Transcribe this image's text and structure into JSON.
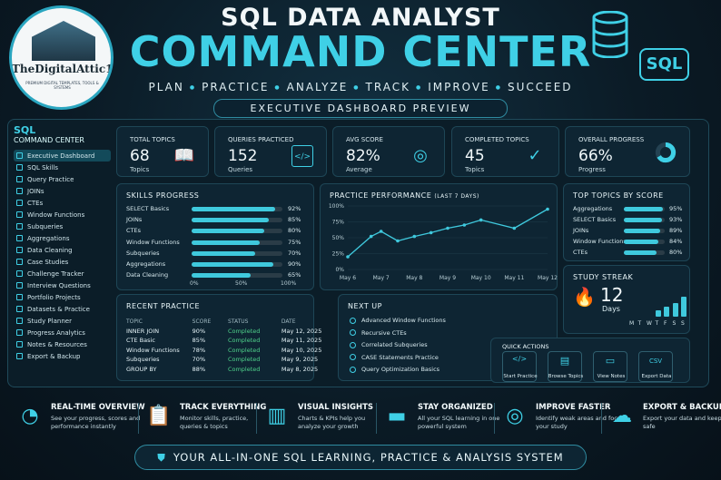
{
  "header": {
    "title1": "SQL DATA ANALYST",
    "title2": "COMMAND CENTER",
    "tagline": [
      "PLAN",
      "PRACTICE",
      "ANALYZE",
      "TRACK",
      "IMPROVE",
      "SUCCEED"
    ],
    "subtitle": "EXECUTIVE DASHBOARD PREVIEW",
    "badge": "SQL"
  },
  "logo": {
    "brand": "TheDigitalAttic1",
    "tagline": "PREMIUM DIGITAL TEMPLATES, TOOLS & SYSTEMS"
  },
  "sidebar": {
    "title": "SQL",
    "subtitle": "COMMAND CENTER",
    "items": [
      {
        "label": "Executive Dashboard",
        "icon": "dashboard-icon"
      },
      {
        "label": "SQL Skills",
        "icon": "skills-icon"
      },
      {
        "label": "Query Practice",
        "icon": "query-icon"
      },
      {
        "label": "JOINs",
        "icon": "joins-icon"
      },
      {
        "label": "CTEs",
        "icon": "cte-icon"
      },
      {
        "label": "Window Functions",
        "icon": "window-icon"
      },
      {
        "label": "Subqueries",
        "icon": "subquery-icon"
      },
      {
        "label": "Aggregations",
        "icon": "aggregation-icon"
      },
      {
        "label": "Data Cleaning",
        "icon": "cleaning-icon"
      },
      {
        "label": "Case Studies",
        "icon": "case-icon"
      },
      {
        "label": "Challenge Tracker",
        "icon": "challenge-icon"
      },
      {
        "label": "Interview Questions",
        "icon": "interview-icon"
      },
      {
        "label": "Portfolio Projects",
        "icon": "portfolio-icon"
      },
      {
        "label": "Datasets & Practice",
        "icon": "dataset-icon"
      },
      {
        "label": "Study Planner",
        "icon": "planner-icon"
      },
      {
        "label": "Progress Analytics",
        "icon": "analytics-icon"
      },
      {
        "label": "Notes & Resources",
        "icon": "notes-icon"
      },
      {
        "label": "Export & Backup",
        "icon": "export-icon"
      }
    ]
  },
  "kpis": [
    {
      "label": "TOTAL TOPICS",
      "value": "68",
      "unit": "Topics",
      "icon": "book-icon"
    },
    {
      "label": "QUERIES PRACTICED",
      "value": "152",
      "unit": "Queries",
      "icon": "code-icon"
    },
    {
      "label": "AVG SCORE",
      "value": "82%",
      "unit": "Average",
      "icon": "target-icon"
    },
    {
      "label": "COMPLETED TOPICS",
      "value": "45",
      "unit": "Topics",
      "icon": "check-circle-icon"
    },
    {
      "label": "OVERALL PROGRESS",
      "value": "66%",
      "unit": "Progress",
      "icon": "donut-icon",
      "progress": 0.66
    }
  ],
  "skills": {
    "title": "SKILLS PROGRESS",
    "items": [
      {
        "name": "SELECT Basics",
        "pct": "92%",
        "v": 92
      },
      {
        "name": "JOINs",
        "pct": "85%",
        "v": 85
      },
      {
        "name": "CTEs",
        "pct": "80%",
        "v": 80
      },
      {
        "name": "Window Functions",
        "pct": "75%",
        "v": 75
      },
      {
        "name": "Subqueries",
        "pct": "70%",
        "v": 70
      },
      {
        "name": "Aggregations",
        "pct": "90%",
        "v": 90
      },
      {
        "name": "Data Cleaning",
        "pct": "65%",
        "v": 65
      }
    ],
    "axis": [
      "0%",
      "50%",
      "100%"
    ]
  },
  "chart_data": {
    "type": "line",
    "title": "PRACTICE PERFORMANCE",
    "subtitle": "(LAST 7 DAYS)",
    "categories": [
      "May 6",
      "May 7",
      "May 8",
      "May 9",
      "May 10",
      "May 11",
      "May 12"
    ],
    "x": [
      0,
      0.7,
      1,
      1.5,
      2,
      2.5,
      3,
      3.5,
      4,
      5,
      6
    ],
    "values": [
      20,
      52,
      60,
      45,
      52,
      58,
      65,
      70,
      78,
      65,
      95
    ],
    "ylim": [
      0,
      100
    ],
    "yticks": [
      "0%",
      "25%",
      "50%",
      "75%",
      "100%"
    ],
    "color": "#3fc9dd"
  },
  "top_topics": {
    "title": "TOP TOPICS BY SCORE",
    "items": [
      {
        "name": "Aggregations",
        "pct": "95%",
        "v": 95
      },
      {
        "name": "SELECT Basics",
        "pct": "93%",
        "v": 93
      },
      {
        "name": "JOINs",
        "pct": "89%",
        "v": 89
      },
      {
        "name": "Window Functions",
        "pct": "84%",
        "v": 84
      },
      {
        "name": "CTEs",
        "pct": "80%",
        "v": 80
      }
    ]
  },
  "streak": {
    "title": "STUDY STREAK",
    "value": "12",
    "unit": "Days",
    "days": [
      "M",
      "T",
      "W",
      "T",
      "F",
      "S",
      "S"
    ],
    "levels": [
      0,
      0,
      0,
      0.3,
      0.5,
      0.7,
      1
    ]
  },
  "recent": {
    "title": "RECENT PRACTICE",
    "headers": [
      "TOPIC",
      "SCORE",
      "STATUS",
      "DATE"
    ],
    "rows": [
      [
        "INNER JOIN",
        "90%",
        "Completed",
        "May 12, 2025"
      ],
      [
        "CTE Basic",
        "85%",
        "Completed",
        "May 11, 2025"
      ],
      [
        "Window Functions",
        "78%",
        "Completed",
        "May 10, 2025"
      ],
      [
        "Subqueries",
        "70%",
        "Completed",
        "May 9, 2025"
      ],
      [
        "GROUP BY",
        "88%",
        "Completed",
        "May 8, 2025"
      ]
    ]
  },
  "next_up": {
    "title": "NEXT UP",
    "items": [
      "Advanced Window Functions",
      "Recursive CTEs",
      "Correlated Subqueries",
      "CASE Statements Practice",
      "Query Optimization Basics"
    ]
  },
  "quick_actions": {
    "title": "QUICK ACTIONS",
    "items": [
      {
        "label": "Start Practice",
        "icon": "code-icon"
      },
      {
        "label": "Browse Topics",
        "icon": "book-icon"
      },
      {
        "label": "View Notes",
        "icon": "notes-icon"
      },
      {
        "label": "Export Data",
        "icon": "csv-icon",
        "glyph": "CSV"
      }
    ]
  },
  "features": [
    {
      "title": "REAL-TIME OVERVIEW",
      "desc": "See your progress, scores and performance instantly",
      "icon": "gauge-icon"
    },
    {
      "title": "TRACK EVERYTHING",
      "desc": "Monitor skills, practice, queries & topics",
      "icon": "clipboard-icon"
    },
    {
      "title": "VISUAL INSIGHTS",
      "desc": "Charts & KPIs help you analyze your growth",
      "icon": "bar-chart-icon"
    },
    {
      "title": "STAY ORGANIZED",
      "desc": "All your SQL learning in one powerful system",
      "icon": "folder-icon"
    },
    {
      "title": "IMPROVE FASTER",
      "desc": "Identify weak areas and focus your study",
      "icon": "target-icon"
    },
    {
      "title": "EXPORT & BACKUP",
      "desc": "Export your data and keep it safe",
      "icon": "cloud-icon"
    }
  ],
  "banner": "YOUR ALL-IN-ONE SQL LEARNING, PRACTICE & ANALYSIS SYSTEM"
}
